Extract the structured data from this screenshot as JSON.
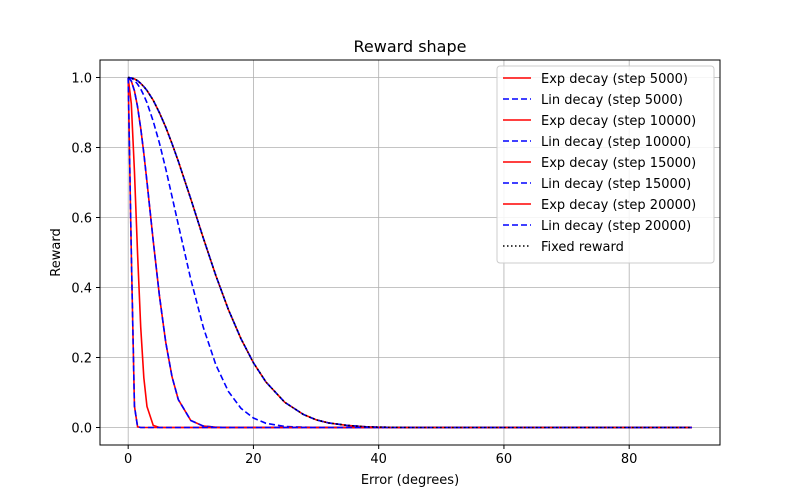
{
  "chart_data": {
    "type": "line",
    "title": "Reward shape",
    "xlabel": "Error (degrees)",
    "ylabel": "Reward",
    "xlim": [
      -4.5,
      94.5
    ],
    "ylim": [
      -0.05,
      1.05
    ],
    "xticks": [
      0,
      20,
      40,
      60,
      80
    ],
    "yticks": [
      0.0,
      0.2,
      0.4,
      0.6,
      0.8,
      1.0
    ],
    "xtick_labels": [
      "0",
      "20",
      "40",
      "60",
      "80"
    ],
    "ytick_labels": [
      "0.0",
      "0.2",
      "0.4",
      "0.6",
      "0.8",
      "1.0"
    ],
    "grid": true,
    "legend_position": "top-right",
    "x": [
      0,
      0.5,
      1,
      1.5,
      2,
      2.5,
      3,
      4,
      5,
      6,
      7,
      8,
      10,
      12,
      14,
      16,
      18,
      20,
      22,
      25,
      28,
      30,
      32,
      35,
      38,
      40,
      45,
      50,
      55,
      60,
      65,
      70,
      75,
      80,
      85,
      90
    ],
    "series": [
      {
        "name": "Exp decay (step 5000)",
        "color": "#ff0000",
        "dash": "solid",
        "values": [
          1.0,
          0.999,
          0.996,
          0.991,
          0.983,
          0.974,
          0.963,
          0.935,
          0.899,
          0.858,
          0.811,
          0.761,
          0.653,
          0.541,
          0.434,
          0.337,
          0.254,
          0.185,
          0.13,
          0.072,
          0.037,
          0.022,
          0.013,
          0.006,
          0.002,
          0.001,
          0.0,
          0.0,
          0.0,
          0.0,
          0.0,
          0.0,
          0.0,
          0.0,
          0.0,
          0.0
        ]
      },
      {
        "name": "Lin decay (step 5000)",
        "color": "#0000ff",
        "dash": "dashed",
        "values": [
          1.0,
          0.999,
          0.996,
          0.991,
          0.983,
          0.974,
          0.963,
          0.935,
          0.899,
          0.858,
          0.811,
          0.761,
          0.653,
          0.541,
          0.434,
          0.337,
          0.254,
          0.185,
          0.13,
          0.072,
          0.037,
          0.022,
          0.013,
          0.006,
          0.002,
          0.001,
          0.0,
          0.0,
          0.0,
          0.0,
          0.0,
          0.0,
          0.0,
          0.0,
          0.0,
          0.0
        ]
      },
      {
        "name": "Exp decay (step 10000)",
        "color": "#ff0000",
        "dash": "solid",
        "values": [
          1.0,
          0.99,
          0.962,
          0.916,
          0.855,
          0.783,
          0.702,
          0.533,
          0.375,
          0.243,
          0.145,
          0.08,
          0.02,
          0.004,
          0.001,
          0.0,
          0.0,
          0.0,
          0.0,
          0.0,
          0.0,
          0.0,
          0.0,
          0.0,
          0.0,
          0.0,
          0.0,
          0.0,
          0.0,
          0.0,
          0.0,
          0.0,
          0.0,
          0.0,
          0.0,
          0.0
        ]
      },
      {
        "name": "Lin decay (step 10000)",
        "color": "#0000ff",
        "dash": "dashed",
        "values": [
          1.0,
          0.998,
          0.992,
          0.981,
          0.967,
          0.949,
          0.928,
          0.875,
          0.812,
          0.739,
          0.66,
          0.58,
          0.423,
          0.286,
          0.179,
          0.103,
          0.055,
          0.027,
          0.012,
          0.003,
          0.001,
          0.0,
          0.0,
          0.0,
          0.0,
          0.0,
          0.0,
          0.0,
          0.0,
          0.0,
          0.0,
          0.0,
          0.0,
          0.0,
          0.0,
          0.0
        ]
      },
      {
        "name": "Exp decay (step 15000)",
        "color": "#ff0000",
        "dash": "solid",
        "values": [
          1.0,
          0.925,
          0.732,
          0.496,
          0.287,
          0.142,
          0.06,
          0.006,
          0.0,
          0.0,
          0.0,
          0.0,
          0.0,
          0.0,
          0.0,
          0.0,
          0.0,
          0.0,
          0.0,
          0.0,
          0.0,
          0.0,
          0.0,
          0.0,
          0.0,
          0.0,
          0.0,
          0.0,
          0.0,
          0.0,
          0.0,
          0.0,
          0.0,
          0.0,
          0.0,
          0.0
        ]
      },
      {
        "name": "Lin decay (step 15000)",
        "color": "#0000ff",
        "dash": "dashed",
        "values": [
          1.0,
          0.99,
          0.962,
          0.916,
          0.855,
          0.783,
          0.702,
          0.533,
          0.375,
          0.243,
          0.145,
          0.08,
          0.02,
          0.004,
          0.001,
          0.0,
          0.0,
          0.0,
          0.0,
          0.0,
          0.0,
          0.0,
          0.0,
          0.0,
          0.0,
          0.0,
          0.0,
          0.0,
          0.0,
          0.0,
          0.0,
          0.0,
          0.0,
          0.0,
          0.0,
          0.0
        ]
      },
      {
        "name": "Exp decay (step 20000)",
        "color": "#ff0000",
        "dash": "solid",
        "values": [
          1.0,
          0.498,
          0.061,
          0.002,
          0.0,
          0.0,
          0.0,
          0.0,
          0.0,
          0.0,
          0.0,
          0.0,
          0.0,
          0.0,
          0.0,
          0.0,
          0.0,
          0.0,
          0.0,
          0.0,
          0.0,
          0.0,
          0.0,
          0.0,
          0.0,
          0.0,
          0.0,
          0.0,
          0.0,
          0.0,
          0.0,
          0.0,
          0.0,
          0.0,
          0.0,
          0.0
        ]
      },
      {
        "name": "Lin decay (step 20000)",
        "color": "#0000ff",
        "dash": "dashed",
        "values": [
          1.0,
          0.498,
          0.061,
          0.002,
          0.0,
          0.0,
          0.0,
          0.0,
          0.0,
          0.0,
          0.0,
          0.0,
          0.0,
          0.0,
          0.0,
          0.0,
          0.0,
          0.0,
          0.0,
          0.0,
          0.0,
          0.0,
          0.0,
          0.0,
          0.0,
          0.0,
          0.0,
          0.0,
          0.0,
          0.0,
          0.0,
          0.0,
          0.0,
          0.0,
          0.0,
          0.0
        ]
      },
      {
        "name": "Fixed reward",
        "color": "#000000",
        "dash": "dotted",
        "values": [
          1.0,
          0.999,
          0.996,
          0.991,
          0.983,
          0.974,
          0.963,
          0.935,
          0.899,
          0.858,
          0.811,
          0.761,
          0.653,
          0.541,
          0.434,
          0.337,
          0.254,
          0.185,
          0.13,
          0.072,
          0.037,
          0.022,
          0.013,
          0.006,
          0.002,
          0.001,
          0.0,
          0.0,
          0.0,
          0.0,
          0.0,
          0.0,
          0.0,
          0.0,
          0.0,
          0.0
        ]
      }
    ]
  }
}
